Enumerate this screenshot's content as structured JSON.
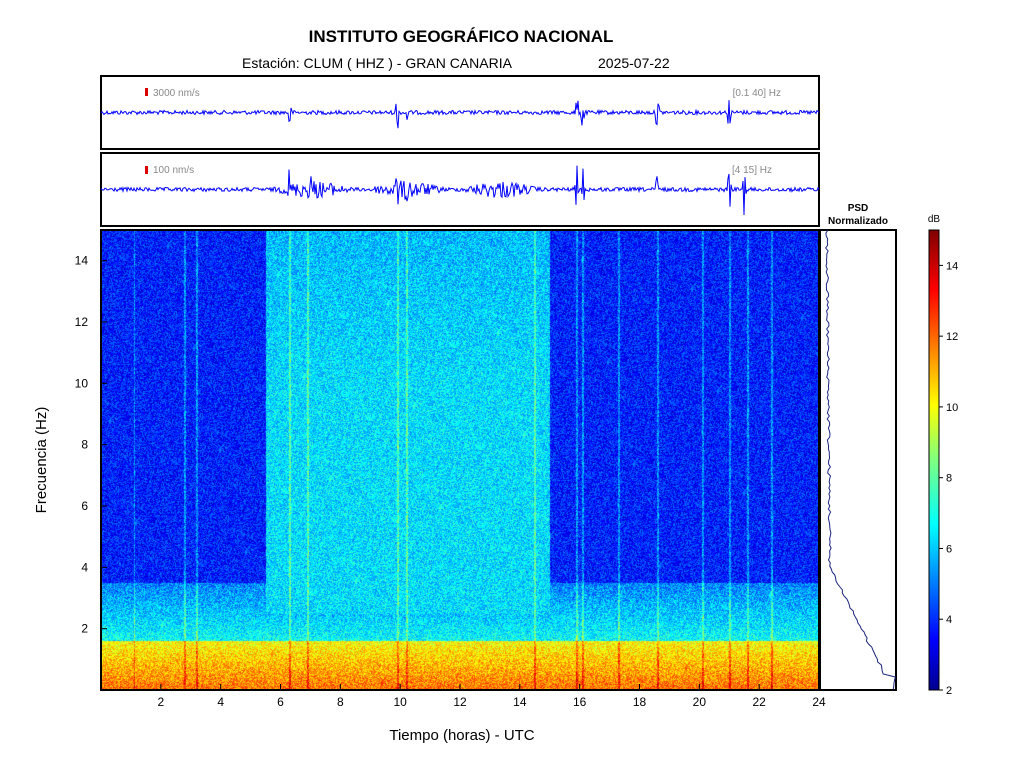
{
  "header": {
    "title": "INSTITUTO GEOGRÁFICO NACIONAL",
    "station_line": "Estación:  CLUM ( HHZ ) - GRAN CANARIA",
    "date": "2025-07-22"
  },
  "chart_data": [
    {
      "type": "line",
      "name": "waveform-broadband",
      "scale_label": "3000 nm/s",
      "filter_label": "[0.1 40] Hz",
      "x_range": [
        0,
        24
      ],
      "events_hours": [
        6.3,
        9.9,
        10.2,
        15.9,
        16.1,
        18.6,
        21.0
      ]
    },
    {
      "type": "line",
      "name": "waveform-filtered",
      "scale_label": "100 nm/s",
      "filter_label": "[4 15] Hz",
      "x_range": [
        0,
        24
      ],
      "events_hours": [
        6.3,
        7.0,
        9.9,
        10.2,
        15.9,
        16.1,
        18.6,
        21.0,
        21.5
      ]
    },
    {
      "type": "heatmap",
      "xlabel": "Tiempo (horas) - UTC",
      "ylabel": "Frecuencia  (Hz)",
      "x_range": [
        0,
        24
      ],
      "y_range": [
        0,
        15
      ],
      "x_ticks": [
        2,
        4,
        6,
        8,
        10,
        12,
        14,
        16,
        18,
        20,
        22,
        24
      ],
      "y_ticks": [
        2,
        4,
        6,
        8,
        10,
        12,
        14
      ],
      "active_noise_hours": [
        5.5,
        15.0
      ],
      "quiet_levels_db": {
        "low_band_0_1hz": 12,
        "mid_band_2hz": 7,
        "high_band_quiet": 4,
        "high_band_active": 6.5
      }
    },
    {
      "type": "line",
      "name": "psd-normalizado",
      "title_line1": "PSD",
      "title_line2": "Normalizado"
    },
    {
      "type": "colorbar",
      "unit_label": "dB",
      "range": [
        2,
        15
      ],
      "ticks": [
        2,
        4,
        6,
        8,
        10,
        12,
        14
      ]
    }
  ],
  "colors": {
    "waveform": "#0000ff",
    "psd_line": "#1a237e",
    "scale_marker": "#dd0000"
  }
}
